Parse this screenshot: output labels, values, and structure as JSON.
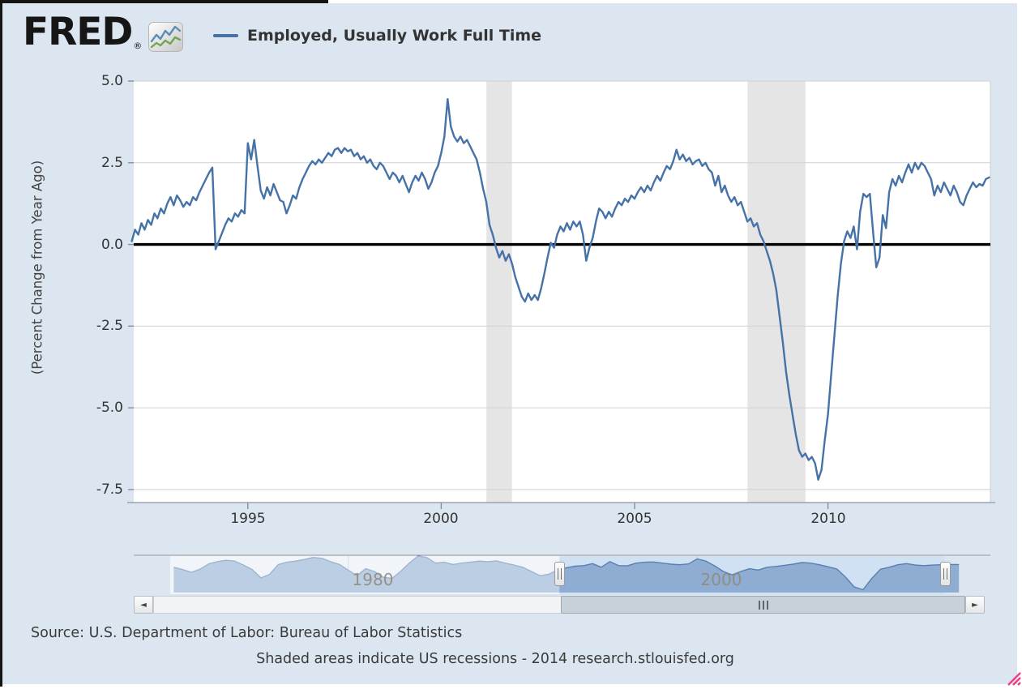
{
  "header": {
    "logo_text": "FRED",
    "logo_reg": "®",
    "legend_label": "Employed, Usually Work Full Time",
    "legend_color": "#4572a7"
  },
  "chart_data": {
    "type": "line",
    "title": "Employed, Usually Work Full Time",
    "xlabel": "",
    "ylabel": "(Percent Change from Year Ago)",
    "xlim": [
      1992.05,
      2014.2
    ],
    "ylim": [
      -7.9,
      5.0
    ],
    "grid": true,
    "x_ticks": [
      1995,
      2000,
      2005,
      2010
    ],
    "x_tick_labels": [
      "1995",
      "2000",
      "2005",
      "2010"
    ],
    "y_ticks": [
      5.0,
      2.5,
      0.0,
      -2.5,
      -5.0,
      -7.5
    ],
    "y_tick_labels": [
      "5.0",
      "2.5",
      "0.0",
      "-2.5",
      "-5.0",
      "-7.5"
    ],
    "line_color": "#4572a7",
    "zero_line_color": "#000000",
    "grid_color": "#d2d2d2",
    "plot_bg": "#ffffff",
    "band_color": "#e5e5e5",
    "recession_bands": [
      [
        2001.17,
        2001.83
      ],
      [
        2007.92,
        2009.42
      ]
    ],
    "series": {
      "name": "Employed, Usually Work Full Time",
      "units": "Percent Change from Year Ago",
      "frequency": "monthly",
      "start_year": 1992.0,
      "interval_years": 0.083333,
      "values": [
        0.1,
        0.45,
        0.3,
        0.65,
        0.45,
        0.75,
        0.6,
        0.95,
        0.8,
        1.1,
        0.95,
        1.25,
        1.45,
        1.2,
        1.5,
        1.35,
        1.15,
        1.3,
        1.2,
        1.45,
        1.35,
        1.6,
        1.8,
        2.0,
        2.2,
        2.35,
        -0.15,
        0.1,
        0.35,
        0.6,
        0.8,
        0.7,
        0.95,
        0.85,
        1.05,
        0.95,
        3.1,
        2.6,
        3.2,
        2.4,
        1.65,
        1.4,
        1.75,
        1.5,
        1.85,
        1.6,
        1.35,
        1.3,
        0.95,
        1.2,
        1.5,
        1.4,
        1.75,
        2.0,
        2.2,
        2.4,
        2.55,
        2.45,
        2.6,
        2.5,
        2.65,
        2.8,
        2.7,
        2.9,
        2.95,
        2.8,
        2.95,
        2.85,
        2.9,
        2.7,
        2.8,
        2.6,
        2.7,
        2.5,
        2.6,
        2.4,
        2.3,
        2.5,
        2.4,
        2.2,
        2.0,
        2.2,
        2.1,
        1.9,
        2.1,
        1.85,
        1.6,
        1.9,
        2.1,
        1.95,
        2.2,
        2.0,
        1.7,
        1.9,
        2.2,
        2.4,
        2.8,
        3.3,
        4.45,
        3.6,
        3.3,
        3.15,
        3.3,
        3.1,
        3.2,
        3.0,
        2.8,
        2.6,
        2.2,
        1.7,
        1.3,
        0.6,
        0.3,
        -0.1,
        -0.4,
        -0.2,
        -0.5,
        -0.3,
        -0.6,
        -1.0,
        -1.3,
        -1.6,
        -1.75,
        -1.5,
        -1.7,
        -1.55,
        -1.7,
        -1.35,
        -0.9,
        -0.4,
        0.05,
        -0.1,
        0.3,
        0.55,
        0.4,
        0.65,
        0.45,
        0.7,
        0.55,
        0.7,
        0.3,
        -0.5,
        -0.1,
        0.2,
        0.7,
        1.1,
        1.0,
        0.8,
        1.0,
        0.85,
        1.1,
        1.3,
        1.2,
        1.4,
        1.3,
        1.5,
        1.4,
        1.6,
        1.75,
        1.6,
        1.8,
        1.65,
        1.9,
        2.1,
        1.95,
        2.2,
        2.4,
        2.3,
        2.55,
        2.9,
        2.6,
        2.75,
        2.55,
        2.65,
        2.45,
        2.55,
        2.6,
        2.4,
        2.5,
        2.3,
        2.2,
        1.8,
        2.1,
        1.6,
        1.8,
        1.5,
        1.3,
        1.45,
        1.2,
        1.3,
        1.0,
        0.7,
        0.8,
        0.55,
        0.65,
        0.3,
        0.1,
        -0.2,
        -0.5,
        -0.9,
        -1.4,
        -2.2,
        -3.0,
        -3.9,
        -4.6,
        -5.2,
        -5.8,
        -6.3,
        -6.5,
        -6.4,
        -6.6,
        -6.5,
        -6.7,
        -7.2,
        -6.9,
        -6.0,
        -5.2,
        -4.0,
        -2.8,
        -1.6,
        -0.6,
        0.1,
        0.4,
        0.2,
        0.55,
        -0.15,
        1.0,
        1.55,
        1.45,
        1.55,
        0.4,
        -0.7,
        -0.4,
        0.9,
        0.5,
        1.6,
        2.0,
        1.8,
        2.1,
        1.9,
        2.2,
        2.45,
        2.2,
        2.5,
        2.3,
        2.5,
        2.4,
        2.2,
        2.0,
        1.5,
        1.8,
        1.6,
        1.9,
        1.7,
        1.5,
        1.8,
        1.6,
        1.3,
        1.2,
        1.5,
        1.7,
        1.9,
        1.75,
        1.85,
        1.8,
        2.0,
        2.05
      ]
    }
  },
  "navigator": {
    "xlim": [
      1969.8,
      2014.2
    ],
    "ylim": [
      -8,
      5
    ],
    "x_ticks": [
      1980,
      2000
    ],
    "x_tick_labels": [
      "1980",
      "2000"
    ],
    "selected_range": [
      1992.1,
      2014.2
    ],
    "area_color": "#8fadd2",
    "line_color": "#587fae",
    "selected_bg": "#cfe1f3",
    "unselected_bg": "#eef3f8",
    "grid_color": "#c4cedb",
    "series": {
      "frequency": "semiannual",
      "start_year": 1970.0,
      "interval_years": 0.5,
      "values": [
        1.0,
        0.2,
        -0.8,
        0.3,
        2.2,
        3.0,
        3.5,
        3.2,
        1.8,
        0.2,
        -2.8,
        -1.5,
        2.0,
        2.8,
        3.2,
        3.8,
        4.5,
        4.2,
        3.0,
        2.0,
        0.0,
        -2.0,
        0.5,
        -0.5,
        -2.5,
        -3.0,
        -0.5,
        2.5,
        5.0,
        4.5,
        2.5,
        2.8,
        2.0,
        2.5,
        2.8,
        3.2,
        3.0,
        3.3,
        2.5,
        1.8,
        1.0,
        -0.5,
        -2.0,
        -1.5,
        0.1,
        0.8,
        1.4,
        1.6,
        2.3,
        1.0,
        3.0,
        1.6,
        1.5,
        2.5,
        2.8,
        2.9,
        2.5,
        2.1,
        1.9,
        2.2,
        4.0,
        3.2,
        1.5,
        -0.5,
        -1.7,
        -0.5,
        0.5,
        0.0,
        1.0,
        1.3,
        1.7,
        2.1,
        2.7,
        2.5,
        1.9,
        1.2,
        0.4,
        -2.5,
        -6.0,
        -7.0,
        -3.0,
        0.3,
        1.0,
        1.9,
        2.3,
        1.8,
        1.6,
        1.8,
        1.9,
        2.0,
        2.0
      ]
    }
  },
  "scrollbar": {
    "left_arrow": "◄",
    "right_arrow": "►"
  },
  "footer": {
    "source_line": "Source: U.S. Department of Labor: Bureau of Labor Statistics",
    "note_line": "Shaded areas indicate US recessions - 2014 research.stlouisfed.org"
  }
}
